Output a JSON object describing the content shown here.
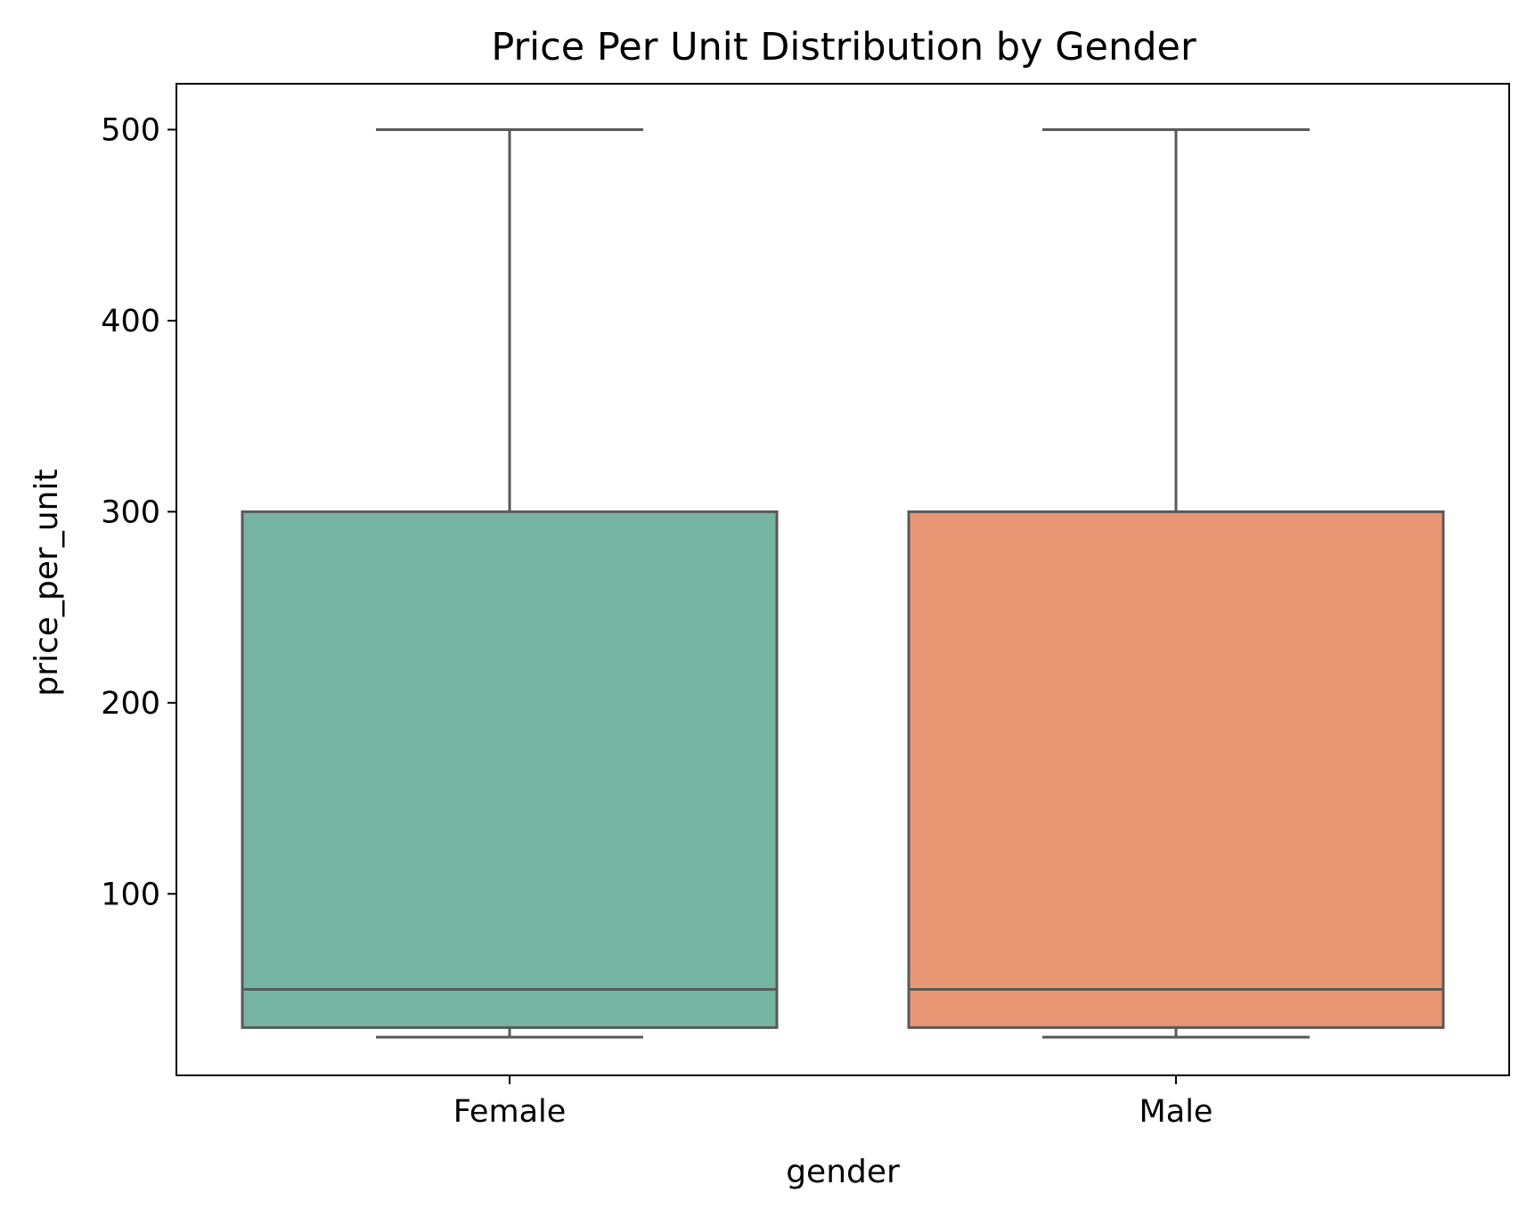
{
  "chart_data": {
    "type": "box",
    "title": "Price Per Unit Distribution by Gender",
    "xlabel": "gender",
    "ylabel": "price_per_unit",
    "categories": [
      "Female",
      "Male"
    ],
    "ylim": [
      5,
      524
    ],
    "yticks": [
      100,
      200,
      300,
      400,
      500
    ],
    "grid": false,
    "boxes": [
      {
        "category": "Female",
        "whisker_low": 25,
        "q1": 30,
        "median": 50,
        "q3": 300,
        "whisker_high": 500,
        "color": "#76b5a1"
      },
      {
        "category": "Male",
        "whisker_low": 25,
        "q1": 30,
        "median": 50,
        "q3": 300,
        "whisker_high": 500,
        "color": "#e99675"
      }
    ],
    "line_color": "#595959"
  }
}
